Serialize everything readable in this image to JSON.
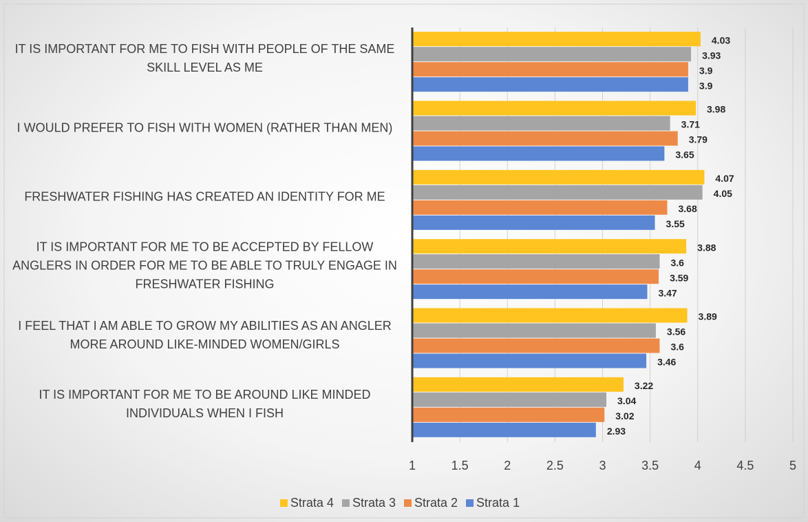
{
  "chart_data": {
    "type": "bar",
    "orientation": "horizontal",
    "categories": [
      "IT IS IMPORTANT FOR ME TO FISH WITH PEOPLE OF THE SAME SKILL LEVEL AS ME",
      "I WOULD PREFER TO FISH WITH WOMEN (RATHER THAN MEN)",
      "FRESHWATER FISHING HAS CREATED AN IDENTITY FOR ME",
      "IT IS IMPORTANT FOR ME TO BE ACCEPTED BY FELLOW ANGLERS IN ORDER FOR ME TO BE ABLE TO TRULY ENGAGE IN FRESHWATER FISHING",
      "I FEEL THAT I AM ABLE TO GROW MY ABILITIES AS AN ANGLER MORE AROUND LIKE-MINDED WOMEN/GIRLS",
      "IT IS IMPORTANT FOR ME TO BE AROUND LIKE MINDED INDIVIDUALS WHEN I FISH"
    ],
    "series": [
      {
        "name": "Strata 4",
        "color": "#ffc41f",
        "values": [
          4.03,
          3.98,
          4.07,
          3.88,
          3.89,
          3.22
        ]
      },
      {
        "name": "Strata 3",
        "color": "#a5a5a5",
        "values": [
          3.93,
          3.71,
          4.05,
          3.6,
          3.56,
          3.04
        ]
      },
      {
        "name": "Strata 2",
        "color": "#ee8a48",
        "values": [
          3.9,
          3.79,
          3.68,
          3.59,
          3.6,
          3.02
        ]
      },
      {
        "name": "Strata 1",
        "color": "#5b86d4",
        "values": [
          3.9,
          3.65,
          3.55,
          3.47,
          3.46,
          2.93
        ]
      }
    ],
    "xlim": [
      1,
      5
    ],
    "xticks": [
      1,
      1.5,
      2,
      2.5,
      3,
      3.5,
      4,
      4.5,
      5
    ],
    "grid": true,
    "legend": "bottom"
  }
}
